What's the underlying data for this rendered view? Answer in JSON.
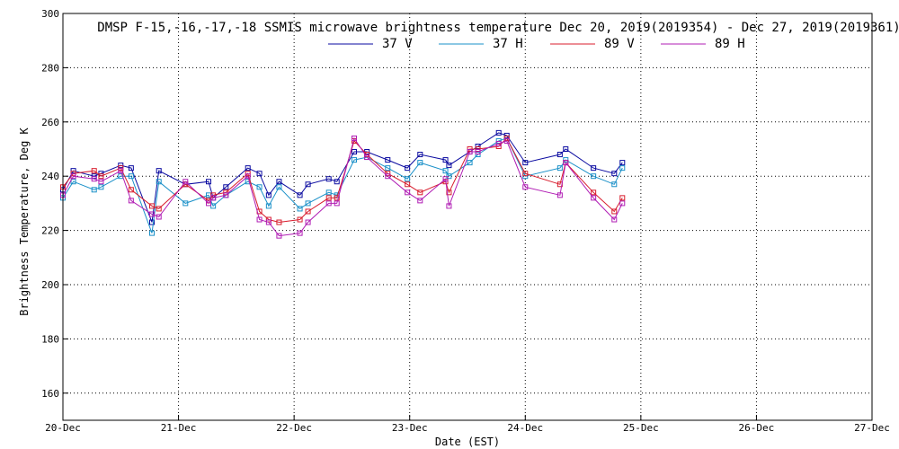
{
  "chart_data": {
    "type": "line",
    "title": "DMSP F-15,-16,-17,-18 SSMIS microwave brightness temperature Dec 20, 2019(2019354) - Dec 27, 2019(2019361)",
    "xlabel": "Date (EST)",
    "ylabel": "Brightness Temperature, Deg K",
    "xlim": [
      0,
      7
    ],
    "ylim": [
      150,
      300
    ],
    "x_ticks": [
      {
        "v": 0,
        "label": "20-Dec"
      },
      {
        "v": 1,
        "label": "21-Dec"
      },
      {
        "v": 2,
        "label": "22-Dec"
      },
      {
        "v": 3,
        "label": "23-Dec"
      },
      {
        "v": 4,
        "label": "24-Dec"
      },
      {
        "v": 5,
        "label": "25-Dec"
      },
      {
        "v": 6,
        "label": "26-Dec"
      },
      {
        "v": 7,
        "label": "27-Dec"
      }
    ],
    "y_ticks": [
      {
        "v": 160,
        "label": "160"
      },
      {
        "v": 180,
        "label": "180"
      },
      {
        "v": 200,
        "label": "200"
      },
      {
        "v": 220,
        "label": "220"
      },
      {
        "v": 240,
        "label": "240"
      },
      {
        "v": 260,
        "label": "260"
      },
      {
        "v": 280,
        "label": "280"
      },
      {
        "v": 300,
        "label": "300"
      }
    ],
    "grid": true,
    "legend_position": "top-center",
    "series": [
      {
        "name": "37 V",
        "color": "#0a0aa0",
        "x": [
          0.0,
          0.09,
          0.27,
          0.33,
          0.5,
          0.59,
          0.77,
          0.83,
          1.06,
          1.26,
          1.3,
          1.41,
          1.6,
          1.7,
          1.78,
          1.87,
          2.05,
          2.12,
          2.3,
          2.37,
          2.52,
          2.63,
          2.81,
          2.98,
          3.09,
          3.31,
          3.34,
          3.52,
          3.59,
          3.77,
          3.84,
          4.0,
          4.3,
          4.35,
          4.59,
          4.77,
          4.84
        ],
        "values": [
          235,
          242,
          240,
          241,
          244,
          243,
          223,
          242,
          237,
          238,
          232,
          236,
          243,
          241,
          233,
          238,
          233,
          237,
          239,
          238,
          249,
          249,
          246,
          243,
          248,
          246,
          244,
          249,
          251,
          256,
          255,
          245,
          248,
          250,
          243,
          241,
          245
        ]
      },
      {
        "name": "37 H",
        "color": "#1a90c8",
        "x": [
          0.0,
          0.09,
          0.27,
          0.33,
          0.5,
          0.59,
          0.77,
          0.83,
          1.06,
          1.26,
          1.3,
          1.41,
          1.6,
          1.7,
          1.78,
          1.87,
          2.05,
          2.12,
          2.3,
          2.37,
          2.52,
          2.63,
          2.81,
          2.98,
          3.09,
          3.31,
          3.34,
          3.52,
          3.59,
          3.77,
          3.84,
          4.0,
          4.3,
          4.35,
          4.59,
          4.77,
          4.84
        ],
        "values": [
          232,
          238,
          235,
          236,
          240,
          240,
          219,
          238,
          230,
          233,
          229,
          233,
          238,
          236,
          229,
          236,
          228,
          230,
          234,
          233,
          246,
          247,
          243,
          239,
          245,
          242,
          240,
          245,
          248,
          253,
          254,
          240,
          243,
          246,
          240,
          237,
          243
        ]
      },
      {
        "name": "89 V",
        "color": "#d81c2c",
        "x": [
          0.0,
          0.09,
          0.27,
          0.33,
          0.5,
          0.59,
          0.77,
          0.83,
          1.06,
          1.26,
          1.3,
          1.41,
          1.6,
          1.7,
          1.78,
          1.87,
          2.05,
          2.12,
          2.3,
          2.37,
          2.52,
          2.63,
          2.81,
          2.98,
          3.09,
          3.31,
          3.34,
          3.52,
          3.59,
          3.77,
          3.84,
          4.0,
          4.3,
          4.35,
          4.59,
          4.77,
          4.84
        ],
        "values": [
          236,
          241,
          242,
          240,
          243,
          235,
          229,
          228,
          237,
          231,
          233,
          234,
          241,
          227,
          224,
          223,
          224,
          227,
          232,
          232,
          253,
          248,
          241,
          237,
          234,
          238,
          234,
          250,
          250,
          251,
          254,
          241,
          237,
          245,
          234,
          227,
          232
        ]
      },
      {
        "name": "89 H",
        "color": "#b01cb4",
        "x": [
          0.0,
          0.09,
          0.27,
          0.33,
          0.5,
          0.59,
          0.77,
          0.83,
          1.06,
          1.26,
          1.3,
          1.41,
          1.6,
          1.7,
          1.78,
          1.87,
          2.05,
          2.12,
          2.3,
          2.37,
          2.52,
          2.63,
          2.81,
          2.98,
          3.09,
          3.31,
          3.34,
          3.52,
          3.59,
          3.77,
          3.84,
          4.0,
          4.3,
          4.35,
          4.59,
          4.77,
          4.84
        ],
        "values": [
          233,
          240,
          239,
          238,
          242,
          231,
          226,
          225,
          238,
          230,
          232,
          233,
          240,
          224,
          223,
          218,
          219,
          223,
          230,
          230,
          254,
          247,
          240,
          234,
          231,
          239,
          229,
          249,
          249,
          252,
          253,
          236,
          233,
          245,
          232,
          224,
          230
        ]
      }
    ]
  }
}
